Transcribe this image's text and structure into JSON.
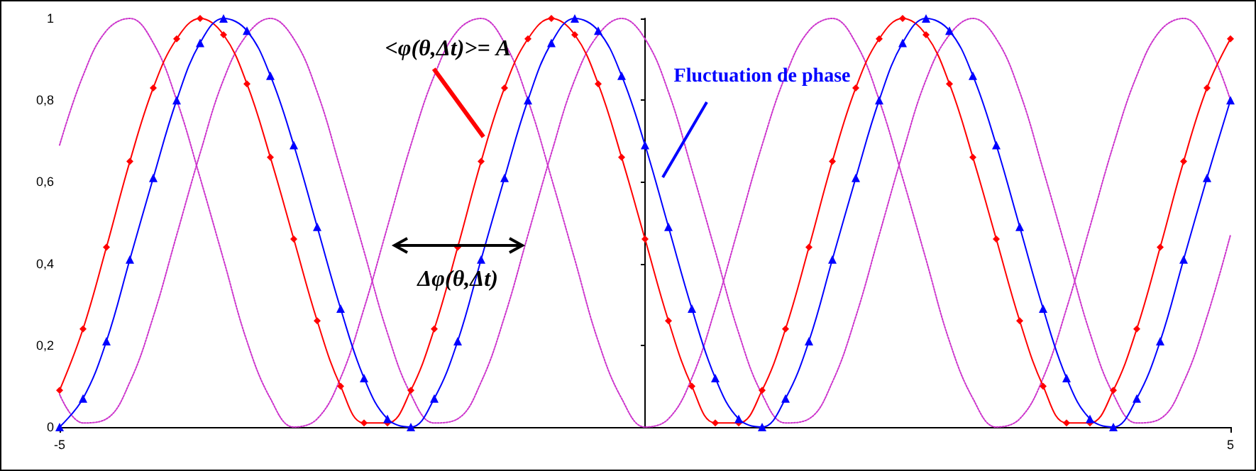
{
  "chart_data": {
    "type": "line",
    "x": [
      -5,
      -4.8,
      -4.6,
      -4.4,
      -4.2,
      -4,
      -3.8,
      -3.6,
      -3.4,
      -3.2,
      -3,
      -2.8,
      -2.6,
      -2.4,
      -2.2,
      -2,
      -1.8,
      -1.6,
      -1.4,
      -1.2,
      -1,
      -0.8,
      -0.6,
      -0.4,
      -0.2,
      0,
      0.2,
      0.4,
      0.6,
      0.8,
      1,
      1.2,
      1.4,
      1.6,
      1.8,
      2,
      2.2,
      2.4,
      2.6,
      2.8,
      3,
      3.2,
      3.4,
      3.6,
      3.8,
      4,
      4.2,
      4.4,
      4.6,
      4.8,
      5
    ],
    "series": [
      {
        "color": "#ff0000",
        "marker": "diamond",
        "line_style": "solid",
        "values": [
          0.09,
          0.24,
          0.44,
          0.65,
          0.83,
          0.95,
          1,
          0.96,
          0.84,
          0.66,
          0.46,
          0.26,
          0.1,
          0.01,
          0.01,
          0.09,
          0.24,
          0.44,
          0.65,
          0.83,
          0.95,
          1,
          0.96,
          0.84,
          0.66,
          0.46,
          0.26,
          0.1,
          0.01,
          0.01,
          0.09,
          0.24,
          0.44,
          0.65,
          0.83,
          0.95,
          1,
          0.96,
          0.84,
          0.66,
          0.46,
          0.26,
          0.1,
          0.01,
          0.01,
          0.09,
          0.24,
          0.44,
          0.65,
          0.83,
          0.95
        ]
      },
      {
        "color": "#0000ff",
        "marker": "triangle",
        "line_style": "solid",
        "values": [
          0,
          0.07,
          0.21,
          0.41,
          0.61,
          0.8,
          0.94,
          1,
          0.97,
          0.86,
          0.69,
          0.49,
          0.29,
          0.12,
          0.02,
          0,
          0.07,
          0.21,
          0.41,
          0.61,
          0.8,
          0.94,
          1,
          0.97,
          0.86,
          0.69,
          0.49,
          0.29,
          0.12,
          0.02,
          0,
          0.07,
          0.21,
          0.41,
          0.61,
          0.8,
          0.94,
          1,
          0.97,
          0.86,
          0.69,
          0.49,
          0.29,
          0.12,
          0.02,
          0,
          0.07,
          0.21,
          0.41,
          0.61,
          0.8
        ]
      },
      {
        "color": "#cc33cc",
        "marker": "none",
        "line_style": "dotted",
        "values": [
          0.69,
          0.86,
          0.97,
          1,
          0.94,
          0.8,
          0.61,
          0.41,
          0.21,
          0.07,
          0,
          0.02,
          0.12,
          0.29,
          0.49,
          0.69,
          0.86,
          0.97,
          1,
          0.94,
          0.8,
          0.61,
          0.41,
          0.21,
          0.07,
          0,
          0.02,
          0.12,
          0.29,
          0.49,
          0.69,
          0.86,
          0.97,
          1,
          0.94,
          0.8,
          0.61,
          0.41,
          0.21,
          0.07,
          0,
          0.02,
          0.12,
          0.29,
          0.49,
          0.69,
          0.86,
          0.97,
          1,
          0.94,
          0.8
        ]
      },
      {
        "color": "#cc33cc",
        "marker": "none",
        "line_style": "dotted",
        "values": [
          0.08,
          0.01,
          0.02,
          0.11,
          0.27,
          0.47,
          0.67,
          0.85,
          0.96,
          1,
          0.95,
          0.82,
          0.63,
          0.43,
          0.23,
          0.08,
          0.01,
          0.02,
          0.11,
          0.27,
          0.47,
          0.67,
          0.85,
          0.96,
          1,
          0.95,
          0.82,
          0.63,
          0.43,
          0.23,
          0.08,
          0.01,
          0.02,
          0.11,
          0.27,
          0.47,
          0.67,
          0.85,
          0.96,
          1,
          0.95,
          0.82,
          0.63,
          0.43,
          0.23,
          0.08,
          0.01,
          0.02,
          0.11,
          0.27,
          0.47
        ]
      }
    ],
    "xlim": [
      -5,
      5
    ],
    "xticks": [
      -5,
      5
    ],
    "ylim": [
      0,
      1
    ],
    "yticks": [
      0,
      {
        "value": 0.2,
        "label": "0,2"
      },
      {
        "value": 0.4,
        "label": "0,4"
      },
      {
        "value": 0.6,
        "label": "0,6"
      },
      {
        "value": 0.8,
        "label": "0,8"
      },
      1
    ],
    "grid": false,
    "annotations": [
      {
        "text": "<φ(θ,Δt)>= A",
        "x": -1.38,
        "y": 0.71
      },
      "Fluctuation de phase",
      {
        "text": "Δφ(θ,Δt)",
        "x": -1.6,
        "y": 0.445
      }
    ]
  }
}
